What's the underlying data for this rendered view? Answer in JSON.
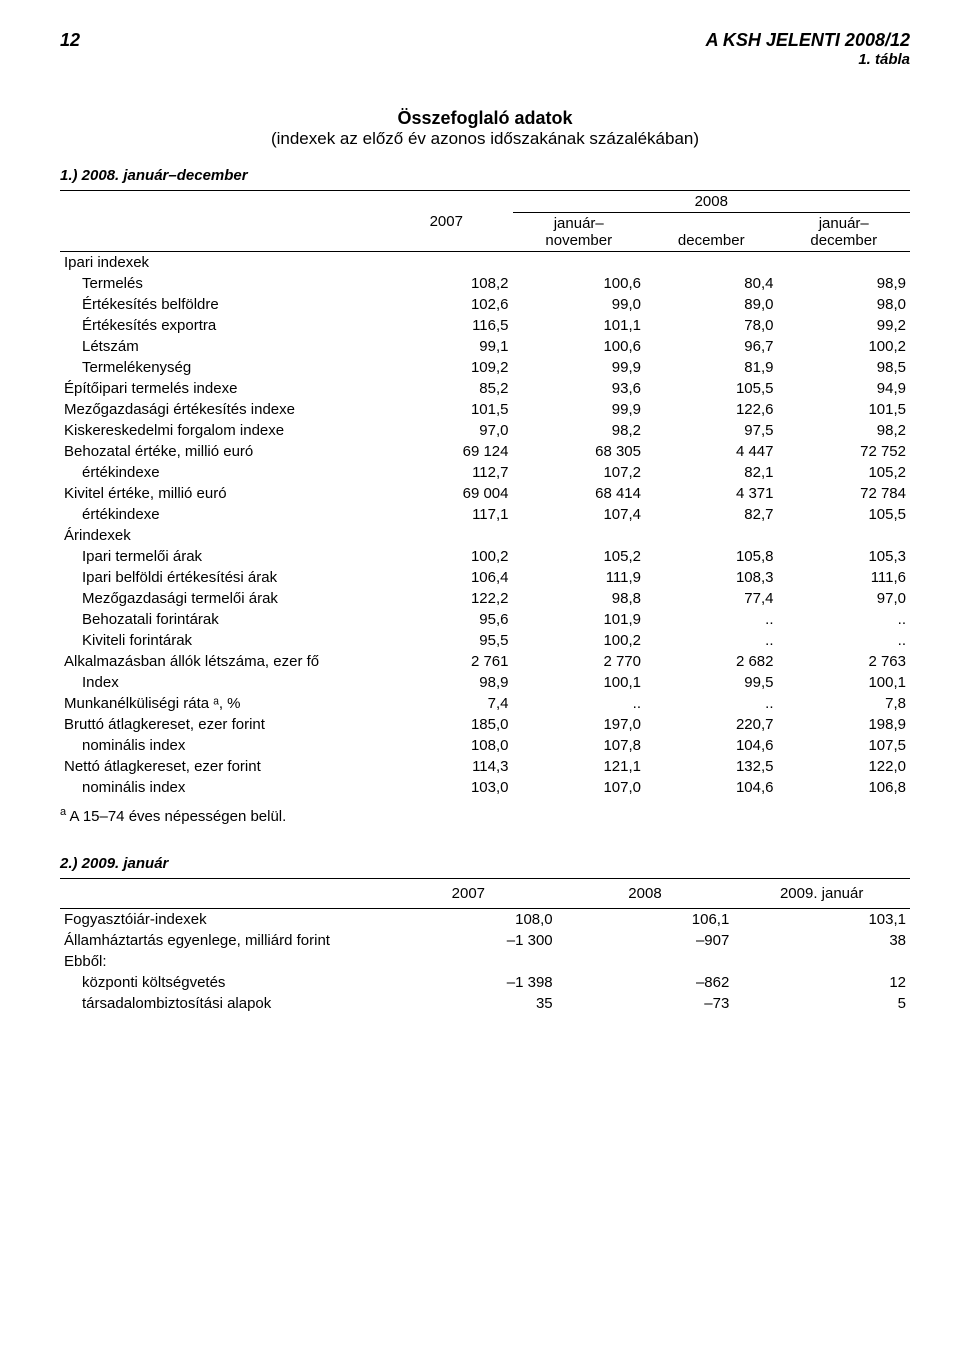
{
  "header": {
    "page_number": "12",
    "report_title": "A KSH JELENTI 2008/12"
  },
  "table1": {
    "tab_label": "1. tábla",
    "title": "Összefoglaló adatok",
    "subtitle": "(indexek az előző év azonos időszakának százalékában)",
    "section_title": "1.) 2008. január–december",
    "col_2007": "2007",
    "col_2008": "2008",
    "sub_col1": "január–\nnovember",
    "sub_col2": "december",
    "sub_col3": "január–\ndecember",
    "rows": [
      {
        "label": "Ipari indexek",
        "indent": 0,
        "values": [
          "",
          "",
          "",
          ""
        ],
        "section": true
      },
      {
        "label": "Termelés",
        "indent": 1,
        "values": [
          "108,2",
          "100,6",
          "80,4",
          "98,9"
        ]
      },
      {
        "label": "Értékesítés belföldre",
        "indent": 1,
        "values": [
          "102,6",
          "99,0",
          "89,0",
          "98,0"
        ]
      },
      {
        "label": "Értékesítés exportra",
        "indent": 1,
        "values": [
          "116,5",
          "101,1",
          "78,0",
          "99,2"
        ]
      },
      {
        "label": "Létszám",
        "indent": 1,
        "values": [
          "99,1",
          "100,6",
          "96,7",
          "100,2"
        ]
      },
      {
        "label": "Termelékenység",
        "indent": 1,
        "values": [
          "109,2",
          "99,9",
          "81,9",
          "98,5"
        ]
      },
      {
        "label": "Építőipari termelés indexe",
        "indent": 0,
        "values": [
          "85,2",
          "93,6",
          "105,5",
          "94,9"
        ]
      },
      {
        "label": "Mezőgazdasági értékesítés indexe",
        "indent": 0,
        "values": [
          "101,5",
          "99,9",
          "122,6",
          "101,5"
        ]
      },
      {
        "label": "Kiskereskedelmi forgalom indexe",
        "indent": 0,
        "values": [
          "97,0",
          "98,2",
          "97,5",
          "98,2"
        ]
      },
      {
        "label": "Behozatal értéke, millió euró",
        "indent": 0,
        "values": [
          "69 124",
          "68 305",
          "4 447",
          "72 752"
        ]
      },
      {
        "label": "értékindexe",
        "indent": 1,
        "values": [
          "112,7",
          "107,2",
          "82,1",
          "105,2"
        ]
      },
      {
        "label": "Kivitel értéke, millió euró",
        "indent": 0,
        "values": [
          "69 004",
          "68 414",
          "4 371",
          "72 784"
        ]
      },
      {
        "label": "értékindexe",
        "indent": 1,
        "values": [
          "117,1",
          "107,4",
          "82,7",
          "105,5"
        ]
      },
      {
        "label": "Árindexek",
        "indent": 0,
        "values": [
          "",
          "",
          "",
          ""
        ],
        "section": true
      },
      {
        "label": "Ipari termelői árak",
        "indent": 1,
        "values": [
          "100,2",
          "105,2",
          "105,8",
          "105,3"
        ]
      },
      {
        "label": "Ipari belföldi értékesítési árak",
        "indent": 1,
        "values": [
          "106,4",
          "111,9",
          "108,3",
          "111,6"
        ]
      },
      {
        "label": "Mezőgazdasági termelői árak",
        "indent": 1,
        "values": [
          "122,2",
          "98,8",
          "77,4",
          "97,0"
        ]
      },
      {
        "label": "Behozatali forintárak",
        "indent": 1,
        "values": [
          "95,6",
          "101,9",
          "..",
          ".."
        ]
      },
      {
        "label": "Kiviteli forintárak",
        "indent": 1,
        "values": [
          "95,5",
          "100,2",
          "..",
          ".."
        ]
      },
      {
        "label": "Alkalmazásban állók létszáma, ezer fő",
        "indent": 0,
        "values": [
          "2 761",
          "2 770",
          "2 682",
          "2 763"
        ]
      },
      {
        "label": "Index",
        "indent": 1,
        "values": [
          "98,9",
          "100,1",
          "99,5",
          "100,1"
        ]
      },
      {
        "label": "Munkanélküliségi ráta ᵃ, %",
        "indent": 0,
        "values": [
          "7,4",
          "..",
          "..",
          "7,8"
        ]
      },
      {
        "label": "Bruttó átlagkereset, ezer forint",
        "indent": 0,
        "values": [
          "185,0",
          "197,0",
          "220,7",
          "198,9"
        ]
      },
      {
        "label": "nominális index",
        "indent": 1,
        "values": [
          "108,0",
          "107,8",
          "104,6",
          "107,5"
        ]
      },
      {
        "label": "Nettó átlagkereset, ezer forint",
        "indent": 0,
        "values": [
          "114,3",
          "121,1",
          "132,5",
          "122,0"
        ]
      },
      {
        "label": "nominális index",
        "indent": 1,
        "values": [
          "103,0",
          "107,0",
          "104,6",
          "106,8"
        ]
      }
    ],
    "footnote_marker": "a",
    "footnote": "A 15–74 éves népességen belül."
  },
  "table2": {
    "section_title": "2.) 2009. január",
    "cols": [
      "2007",
      "2008",
      "2009. január"
    ],
    "rows": [
      {
        "label": "Fogyasztóiár-indexek",
        "indent": 0,
        "values": [
          "108,0",
          "106,1",
          "103,1"
        ]
      },
      {
        "label": "Államháztartás egyenlege, milliárd forint",
        "indent": 0,
        "values": [
          "–1 300",
          "–907",
          "38"
        ]
      },
      {
        "label": "Ebből:",
        "indent": 0,
        "values": [
          "",
          "",
          ""
        ],
        "section": true
      },
      {
        "label": "központi költségvetés",
        "indent": 1,
        "values": [
          "–1 398",
          "–862",
          "12"
        ]
      },
      {
        "label": "társadalombiztosítási alapok",
        "indent": 1,
        "values": [
          "35",
          "–73",
          "5"
        ]
      }
    ]
  }
}
